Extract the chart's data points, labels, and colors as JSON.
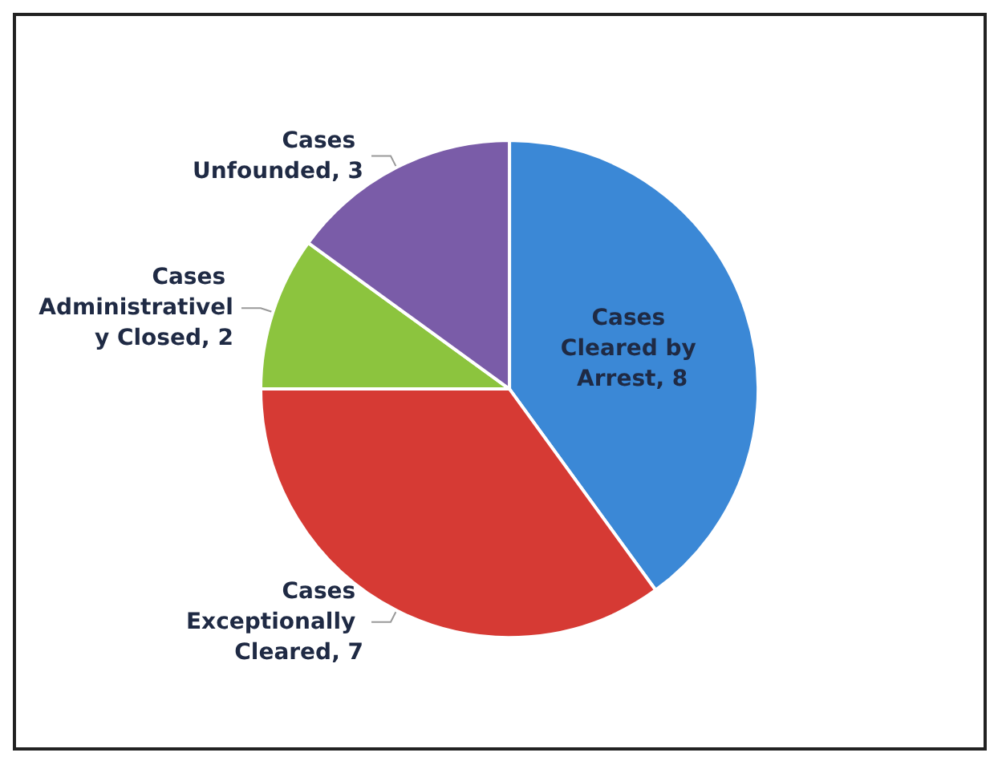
{
  "chart_data": {
    "type": "pie",
    "categories": [
      "Cases Cleared by Arrest",
      "Cases Exceptionally Cleared",
      "Cases Administratively Closed",
      "Cases Unfounded"
    ],
    "values": [
      8,
      7,
      2,
      3
    ],
    "value_labels": [
      "8",
      "7",
      "2",
      "3"
    ],
    "colors": [
      "#3b88d6",
      "#d63a34",
      "#8cc43e",
      "#7a5ca8"
    ]
  }
}
